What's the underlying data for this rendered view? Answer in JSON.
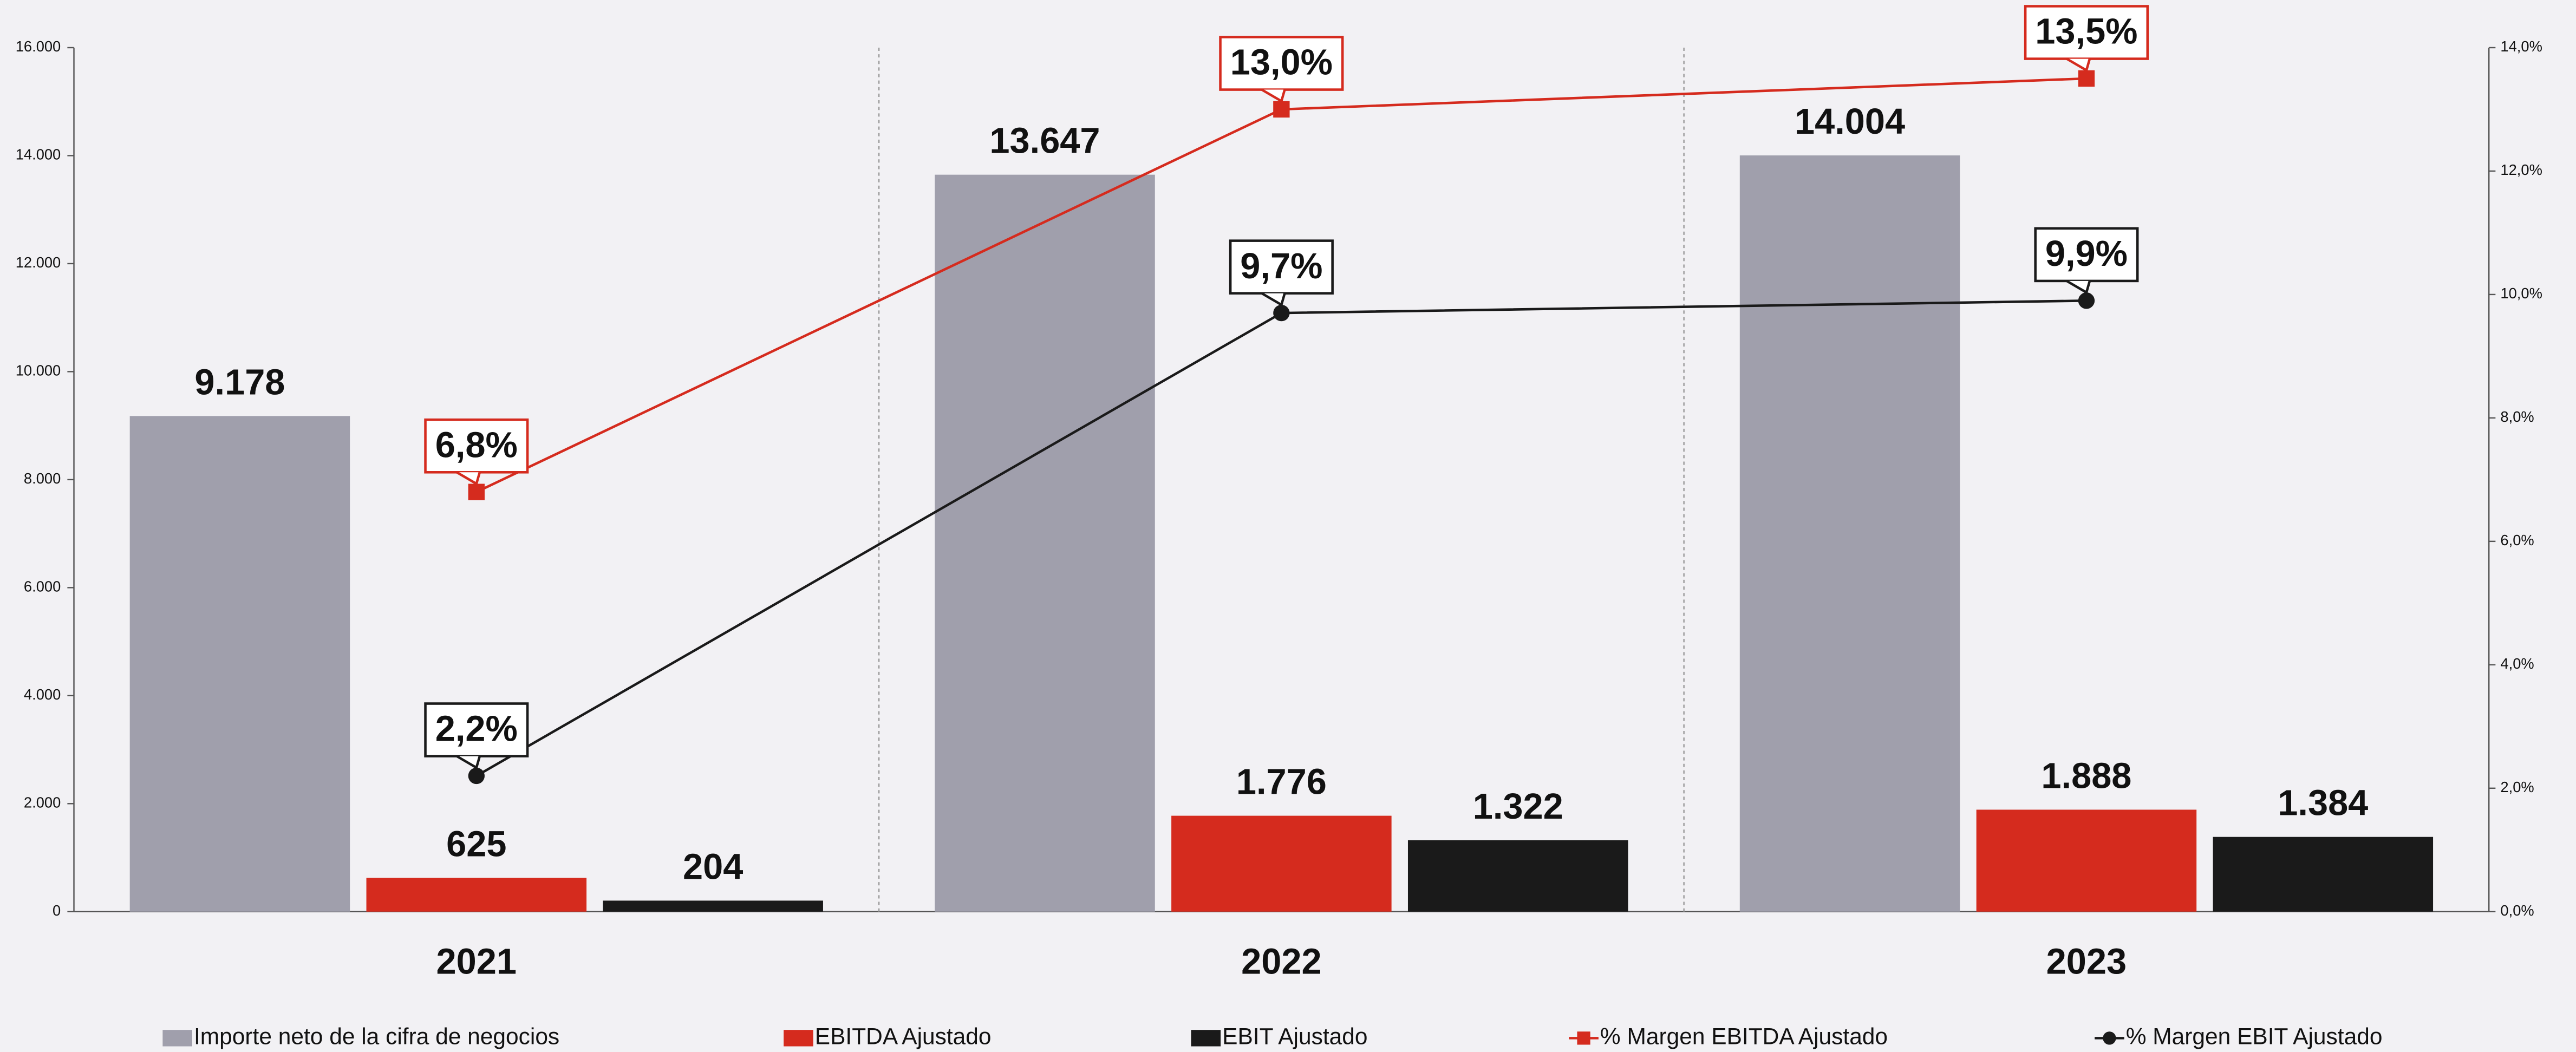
{
  "chart_data": {
    "type": "bar",
    "categories": [
      "2021",
      "2022",
      "2023"
    ],
    "ylim": [
      0,
      16000
    ],
    "yticks": [
      0,
      {
        "value": 2000,
        "label": "2.000"
      },
      {
        "value": 4000,
        "label": "4.000"
      },
      {
        "value": 6000,
        "label": "6.000"
      },
      {
        "value": 8000,
        "label": "8.000"
      },
      {
        "value": 10000,
        "label": "10.000"
      },
      {
        "value": 12000,
        "label": "12.000"
      },
      {
        "value": 14000,
        "label": "14.000"
      },
      {
        "value": 16000,
        "label": "16.000"
      }
    ],
    "y2lim": [
      0,
      14
    ],
    "y2ticks": [
      {
        "value": 0,
        "label": "0,0%"
      },
      {
        "value": 2,
        "label": "2,0%"
      },
      {
        "value": 4,
        "label": "4,0%"
      },
      {
        "value": 6,
        "label": "6,0%"
      },
      {
        "value": 8,
        "label": "8,0%"
      },
      {
        "value": 10,
        "label": "10,0%"
      },
      {
        "value": 12,
        "label": "12,0%"
      },
      {
        "value": 14,
        "label": "14,0%"
      }
    ],
    "series": [
      {
        "name": "Importe neto de la cifra de negocios",
        "type": "bar",
        "color": "#a09fac",
        "values": [
          9178,
          13647,
          14004
        ],
        "value_labels": [
          "9.178",
          "13.647",
          "14.004"
        ]
      },
      {
        "name": "EBITDA Ajustado",
        "type": "bar",
        "color": "#d52b1e",
        "values": [
          625,
          1776,
          1888
        ],
        "value_labels": [
          "625",
          "1.776",
          "1.888"
        ]
      },
      {
        "name": "EBIT Ajustado",
        "type": "bar",
        "color": "#1a1a1a",
        "values": [
          204,
          1322,
          1384
        ],
        "value_labels": [
          "204",
          "1.322",
          "1.384"
        ]
      },
      {
        "name": "% Margen EBITDA Ajustado",
        "type": "line",
        "axis": "y2",
        "color": "#d52b1e",
        "values": [
          6.8,
          13.0,
          13.5
        ],
        "value_labels": [
          "6,8%",
          "13,0%",
          "13,5%"
        ]
      },
      {
        "name": "% Margen EBIT Ajustado",
        "type": "line",
        "axis": "y2",
        "color": "#1a1a1a",
        "values": [
          2.2,
          9.7,
          9.9
        ],
        "value_labels": [
          "2,2%",
          "9,7%",
          "9,9%"
        ]
      }
    ]
  }
}
